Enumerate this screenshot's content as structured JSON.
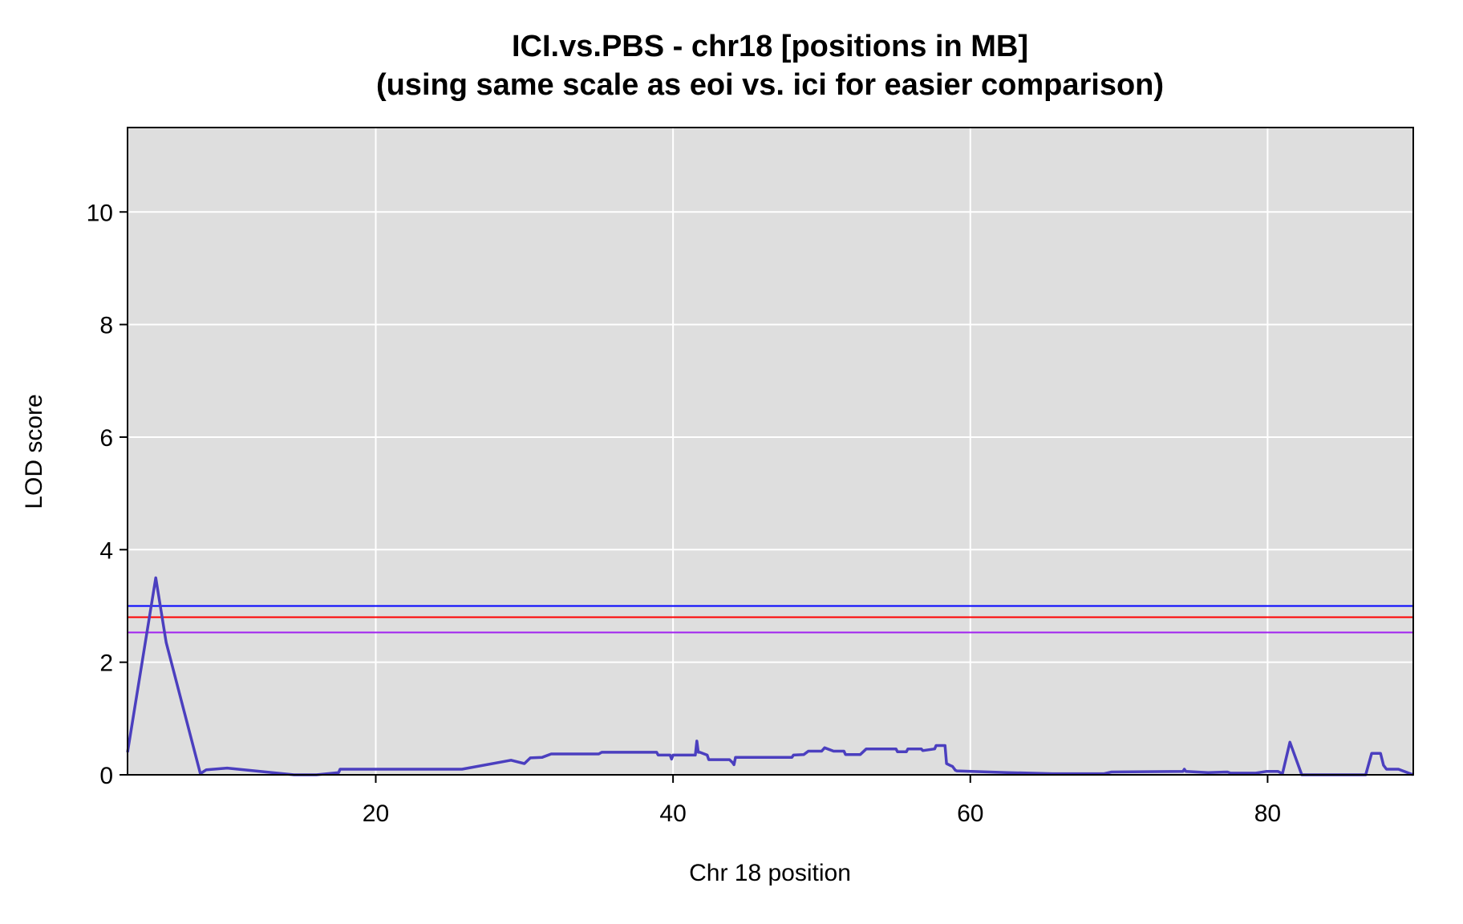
{
  "chart_data": {
    "type": "line",
    "title": "ICI.vs.PBS - chr18 [positions in MB]",
    "subtitle": "(using same scale as eoi vs. ici for easier comparison)",
    "xlabel": "Chr 18 position",
    "ylabel": "LOD score",
    "xlim": [
      3.3,
      89.8
    ],
    "ylim": [
      0,
      11.5
    ],
    "x_ticks": [
      20,
      40,
      60,
      80
    ],
    "y_ticks": [
      0,
      2,
      4,
      6,
      8,
      10
    ],
    "grid": true,
    "legend": "none",
    "colors": {
      "background": "#dedede",
      "grid": "#ffffff",
      "lod_curve": "#4b3fbf"
    },
    "thresholds": [
      {
        "value": 3.0,
        "color": "#0000ff"
      },
      {
        "value": 2.8,
        "color": "#ff0000"
      },
      {
        "value": 2.53,
        "color": "#a020f0"
      }
    ],
    "series": [
      {
        "color": "#4b3fbf",
        "x": [
          3.3,
          5.2,
          5.9,
          8.2,
          8.6,
          10.0,
          14.5,
          16.0,
          17.5,
          17.6,
          25.8,
          29.1,
          30.0,
          30.4,
          31.2,
          31.8,
          35.0,
          35.2,
          38.9,
          39.0,
          39.8,
          39.9,
          40.0,
          41.5,
          41.6,
          41.7,
          41.8,
          42.3,
          42.4,
          43.8,
          44.0,
          44.1,
          44.2,
          48.0,
          48.1,
          48.8,
          49.1,
          50.0,
          50.2,
          50.8,
          51.5,
          51.6,
          52.6,
          53.0,
          55.0,
          55.1,
          55.7,
          55.8,
          56.7,
          56.8,
          57.6,
          57.7,
          58.3,
          58.4,
          58.7,
          58.8,
          59.0,
          59.1,
          62.5,
          65.5,
          69.0,
          69.5,
          74.3,
          74.4,
          74.5,
          76.0,
          77.3,
          77.5,
          79.2,
          79.9,
          80.7,
          81.0,
          81.5,
          82.3,
          86.6,
          87.0,
          87.6,
          87.8,
          88.0,
          88.8,
          89.8
        ],
        "y": [
          0.4,
          3.5,
          2.35,
          0.02,
          0.09,
          0.12,
          0.0,
          0.0,
          0.04,
          0.1,
          0.1,
          0.26,
          0.2,
          0.3,
          0.31,
          0.37,
          0.37,
          0.4,
          0.4,
          0.35,
          0.35,
          0.28,
          0.35,
          0.35,
          0.6,
          0.4,
          0.4,
          0.35,
          0.27,
          0.27,
          0.22,
          0.18,
          0.31,
          0.31,
          0.35,
          0.36,
          0.42,
          0.42,
          0.48,
          0.42,
          0.42,
          0.36,
          0.36,
          0.46,
          0.46,
          0.41,
          0.41,
          0.46,
          0.46,
          0.43,
          0.46,
          0.52,
          0.52,
          0.2,
          0.16,
          0.15,
          0.08,
          0.07,
          0.04,
          0.02,
          0.02,
          0.05,
          0.06,
          0.1,
          0.06,
          0.04,
          0.05,
          0.03,
          0.03,
          0.06,
          0.06,
          0.02,
          0.58,
          0.0,
          0.0,
          0.38,
          0.38,
          0.17,
          0.1,
          0.1,
          0.0
        ]
      }
    ]
  }
}
